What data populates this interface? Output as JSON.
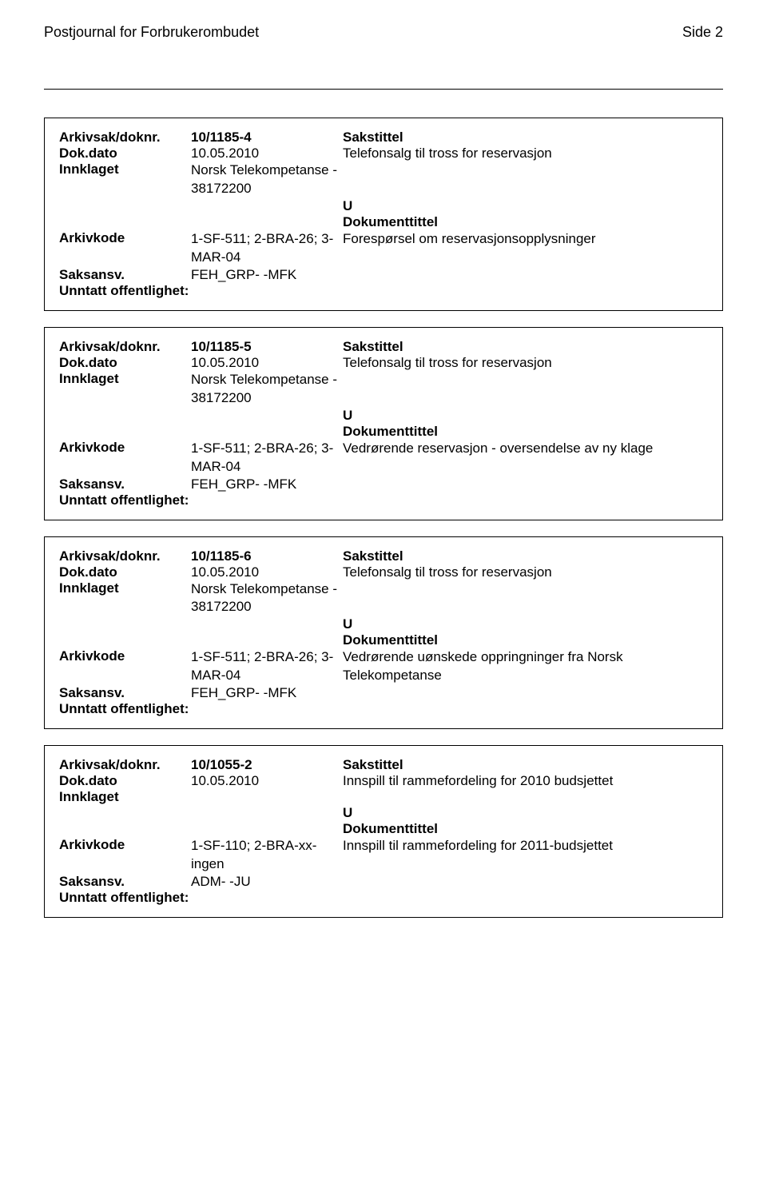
{
  "header": {
    "title": "Postjournal for Forbrukerombudet",
    "page_label": "Side 2"
  },
  "labels": {
    "arkivsak": "Arkivsak/doknr.",
    "dokdato": "Dok.dato",
    "innklaget": "Innklaget",
    "arkivkode": "Arkivkode",
    "saksansv": "Saksansv.",
    "unntatt": "Unntatt offentlighet:",
    "sakstittel": "Sakstittel",
    "dokumenttittel": "Dokumenttittel"
  },
  "records": [
    {
      "arkivsak": "10/1185-4",
      "dokdato": "10.05.2010",
      "innklaget": "Norsk Telekompetanse - 38172200",
      "arkivkode": "1-SF-511; 2-BRA-26; 3-MAR-04",
      "saksansv": "FEH_GRP- -MFK",
      "unntatt": "",
      "sakstittel": "Telefonsalg til tross for reservasjon",
      "type": "U",
      "dokumenttittel": "Forespørsel om reservasjonsopplysninger"
    },
    {
      "arkivsak": "10/1185-5",
      "dokdato": "10.05.2010",
      "innklaget": "Norsk Telekompetanse - 38172200",
      "arkivkode": "1-SF-511; 2-BRA-26; 3-MAR-04",
      "saksansv": "FEH_GRP- -MFK",
      "unntatt": "",
      "sakstittel": "Telefonsalg til tross for reservasjon",
      "type": "U",
      "dokumenttittel": "Vedrørende reservasjon - oversendelse av ny klage"
    },
    {
      "arkivsak": "10/1185-6",
      "dokdato": "10.05.2010",
      "innklaget": "Norsk Telekompetanse - 38172200",
      "arkivkode": "1-SF-511; 2-BRA-26; 3-MAR-04",
      "saksansv": "FEH_GRP- -MFK",
      "unntatt": "",
      "sakstittel": "Telefonsalg til tross for reservasjon",
      "type": "U",
      "dokumenttittel": "Vedrørende uønskede oppringninger fra Norsk Telekompetanse"
    },
    {
      "arkivsak": "10/1055-2",
      "dokdato": "10.05.2010",
      "innklaget": "",
      "arkivkode": "1-SF-110; 2-BRA-xx- ingen",
      "saksansv": "ADM- -JU",
      "unntatt": "",
      "sakstittel": "Innspill til rammefordeling for 2010 budsjettet",
      "type": "U",
      "dokumenttittel": "Innspill til rammefordeling for 2011-budsjettet"
    }
  ]
}
